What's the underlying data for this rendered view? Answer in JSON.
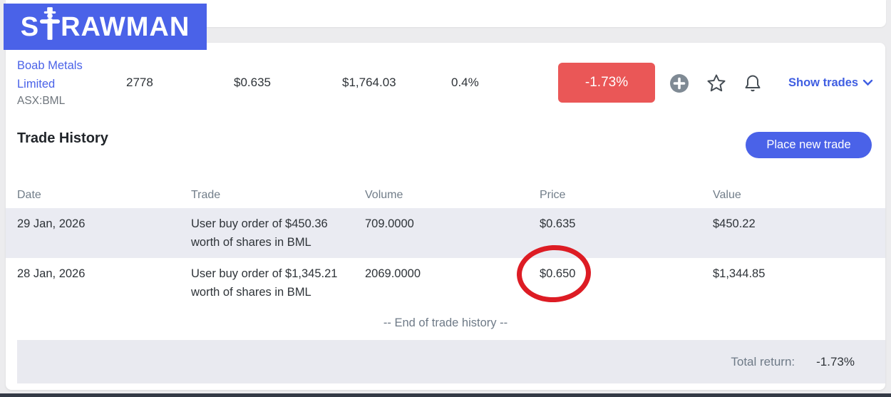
{
  "brand": {
    "logo_pre": "S",
    "logo_post": "RAWMAN",
    "logo_bg": "#4a62e8"
  },
  "stock": {
    "name": "Boab Metals Limited",
    "ticker": "ASX:BML",
    "units": "2778",
    "price": "$0.635",
    "value": "$1,764.03",
    "weight": "0.4%",
    "change": "-1.73%",
    "show_trades_label": "Show trades"
  },
  "trade_history": {
    "title": "Trade History",
    "place_trade_label": "Place new trade",
    "columns": [
      "Date",
      "Trade",
      "Volume",
      "Price",
      "Value"
    ],
    "rows": [
      {
        "date": "29 Jan, 2026",
        "trade": "User buy order of $450.36 worth of shares in BML",
        "volume": "709.0000",
        "price": "$0.635",
        "value": "$450.22"
      },
      {
        "date": "28 Jan, 2026",
        "trade": "User buy order of $1,345.21 worth of shares in BML",
        "volume": "2069.0000",
        "price": "$0.650",
        "value": "$1,344.85"
      }
    ],
    "end_note": "-- End of trade history --",
    "total_return_label": "Total return:",
    "total_return_value": "-1.73%"
  },
  "colors": {
    "accent_blue": "#4a62e8",
    "badge_red": "#ea5757",
    "annotation_red": "#dd1c24",
    "row_stripe": "#eaebf2",
    "page_background": "#ececee"
  },
  "annotation": {
    "type": "red-circle",
    "target": "row 28 Jan, 2026 price $0.650"
  }
}
